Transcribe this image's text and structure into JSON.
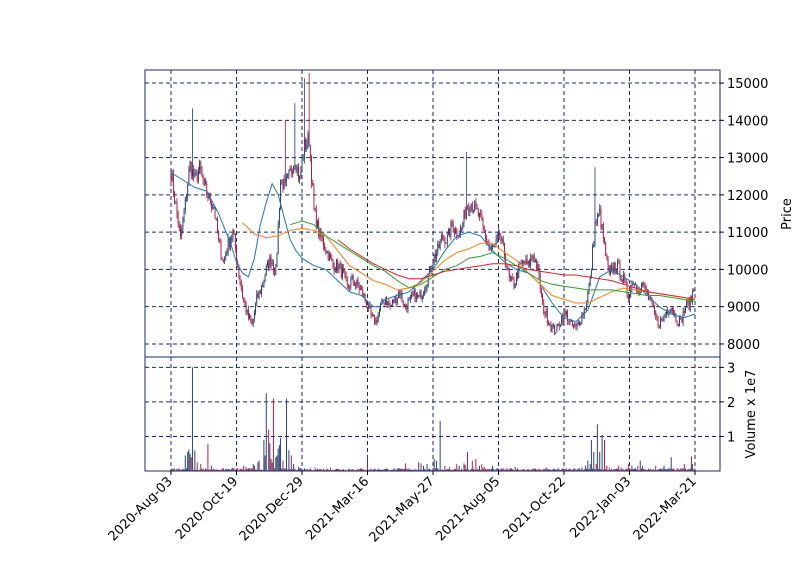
{
  "chart_data": {
    "type": "candlestick",
    "grid": true,
    "grid_style": "dashed",
    "colors": {
      "up": "#1f3b70",
      "down": "#a8163e",
      "frame": "#1b2a6b",
      "grid": "#1b2a6b",
      "ma_short": "#1f77b4",
      "ma_mid": "#ff7f0e",
      "ma_long": "#2ca02c",
      "ma_longest": "#d62728"
    },
    "x_ticks": [
      "2020-Aug-03",
      "2020-Oct-19",
      "2020-Dec-29",
      "2021-Mar-16",
      "2021-May-27",
      "2021-Aug-05",
      "2021-Oct-22",
      "2022-Jan-03",
      "2022-Mar-21"
    ],
    "price_panel": {
      "ylabel": "Price",
      "ylim": [
        7650,
        15350
      ],
      "y_ticks": [
        8000,
        9000,
        10000,
        11000,
        12000,
        13000,
        14000,
        15000
      ]
    },
    "volume_panel": {
      "ylabel": "Volume x 1e7",
      "ylim": [
        0,
        3.3
      ],
      "y_ticks": [
        1,
        2,
        3
      ]
    },
    "price_anchors": [
      [
        0,
        12600
      ],
      [
        4,
        11700
      ],
      [
        8,
        10800
      ],
      [
        12,
        11800
      ],
      [
        16,
        12800
      ],
      [
        20,
        12400
      ],
      [
        24,
        12700
      ],
      [
        28,
        12200
      ],
      [
        32,
        11900
      ],
      [
        36,
        11700
      ],
      [
        40,
        10700
      ],
      [
        44,
        10200
      ],
      [
        48,
        10700
      ],
      [
        52,
        11000
      ],
      [
        56,
        10100
      ],
      [
        60,
        9300
      ],
      [
        64,
        8800
      ],
      [
        68,
        8500
      ],
      [
        72,
        9200
      ],
      [
        76,
        9500
      ],
      [
        80,
        10000
      ],
      [
        84,
        10300
      ],
      [
        88,
        9900
      ],
      [
        92,
        12400
      ],
      [
        96,
        12200
      ],
      [
        100,
        12600
      ],
      [
        104,
        13000
      ],
      [
        108,
        12400
      ],
      [
        112,
        13300
      ],
      [
        116,
        13500
      ],
      [
        120,
        11600
      ],
      [
        124,
        11000
      ],
      [
        128,
        10700
      ],
      [
        132,
        10400
      ],
      [
        136,
        10100
      ],
      [
        140,
        10100
      ],
      [
        144,
        9900
      ],
      [
        148,
        9500
      ],
      [
        152,
        9700
      ],
      [
        156,
        9600
      ],
      [
        160,
        9400
      ],
      [
        164,
        9100
      ],
      [
        168,
        8700
      ],
      [
        172,
        8600
      ],
      [
        176,
        9000
      ],
      [
        180,
        9200
      ],
      [
        184,
        9000
      ],
      [
        188,
        9200
      ],
      [
        192,
        9400
      ],
      [
        196,
        9000
      ],
      [
        200,
        9100
      ],
      [
        204,
        9300
      ],
      [
        208,
        9200
      ],
      [
        212,
        9500
      ],
      [
        216,
        9800
      ],
      [
        220,
        10300
      ],
      [
        224,
        10500
      ],
      [
        228,
        10900
      ],
      [
        232,
        10800
      ],
      [
        236,
        11200
      ],
      [
        240,
        11000
      ],
      [
        244,
        11100
      ],
      [
        248,
        11700
      ],
      [
        252,
        11800
      ],
      [
        256,
        11600
      ],
      [
        260,
        11300
      ],
      [
        264,
        10900
      ],
      [
        268,
        10500
      ],
      [
        272,
        10600
      ],
      [
        276,
        10900
      ],
      [
        280,
        10400
      ],
      [
        284,
        9700
      ],
      [
        288,
        9600
      ],
      [
        292,
        10000
      ],
      [
        296,
        10200
      ],
      [
        300,
        10100
      ],
      [
        304,
        10400
      ],
      [
        308,
        10000
      ],
      [
        312,
        9000
      ],
      [
        316,
        8700
      ],
      [
        320,
        8400
      ],
      [
        324,
        8400
      ],
      [
        328,
        8700
      ],
      [
        332,
        8800
      ],
      [
        336,
        8500
      ],
      [
        340,
        8400
      ],
      [
        344,
        8700
      ],
      [
        348,
        9000
      ],
      [
        352,
        9700
      ],
      [
        356,
        11200
      ],
      [
        360,
        11500
      ],
      [
        364,
        10600
      ],
      [
        368,
        9800
      ],
      [
        372,
        10100
      ],
      [
        376,
        10000
      ],
      [
        380,
        9700
      ],
      [
        384,
        9300
      ],
      [
        388,
        9700
      ],
      [
        392,
        9500
      ],
      [
        396,
        9600
      ],
      [
        400,
        9300
      ],
      [
        404,
        9000
      ],
      [
        408,
        8600
      ],
      [
        412,
        8600
      ],
      [
        416,
        8900
      ],
      [
        420,
        9000
      ],
      [
        424,
        8700
      ],
      [
        428,
        8600
      ],
      [
        432,
        9000
      ],
      [
        436,
        9100
      ],
      [
        440,
        9600
      ]
    ],
    "ma_short_points": [
      [
        0,
        12600
      ],
      [
        10,
        12400
      ],
      [
        20,
        12200
      ],
      [
        30,
        12100
      ],
      [
        40,
        11500
      ],
      [
        50,
        10700
      ],
      [
        55,
        10200
      ],
      [
        60,
        9900
      ],
      [
        65,
        9800
      ],
      [
        70,
        10300
      ],
      [
        75,
        11200
      ],
      [
        80,
        11800
      ],
      [
        85,
        12300
      ],
      [
        90,
        12000
      ],
      [
        95,
        11400
      ],
      [
        100,
        10800
      ],
      [
        105,
        10500
      ],
      [
        110,
        10300
      ],
      [
        120,
        10100
      ],
      [
        130,
        10000
      ],
      [
        140,
        9700
      ],
      [
        150,
        9400
      ],
      [
        160,
        9300
      ],
      [
        165,
        9150
      ],
      [
        170,
        9000
      ],
      [
        175,
        9000
      ],
      [
        180,
        9200
      ],
      [
        190,
        9300
      ],
      [
        200,
        9400
      ],
      [
        210,
        9700
      ],
      [
        220,
        10000
      ],
      [
        230,
        10500
      ],
      [
        240,
        10900
      ],
      [
        250,
        11000
      ],
      [
        260,
        10900
      ],
      [
        270,
        10500
      ],
      [
        280,
        10200
      ],
      [
        290,
        10000
      ],
      [
        300,
        9900
      ],
      [
        310,
        9600
      ],
      [
        320,
        9100
      ],
      [
        330,
        8700
      ],
      [
        340,
        8600
      ],
      [
        350,
        8900
      ],
      [
        360,
        9800
      ],
      [
        370,
        10000
      ],
      [
        380,
        9800
      ],
      [
        390,
        9600
      ],
      [
        400,
        9300
      ],
      [
        410,
        9000
      ],
      [
        420,
        8800
      ],
      [
        430,
        8700
      ],
      [
        440,
        8800
      ]
    ],
    "ma_mid_points": [
      [
        60,
        11250
      ],
      [
        70,
        10950
      ],
      [
        80,
        10850
      ],
      [
        90,
        10900
      ],
      [
        100,
        11050
      ],
      [
        110,
        11100
      ],
      [
        120,
        11050
      ],
      [
        130,
        10900
      ],
      [
        140,
        10500
      ],
      [
        150,
        10100
      ],
      [
        160,
        9900
      ],
      [
        170,
        9700
      ],
      [
        180,
        9600
      ],
      [
        190,
        9450
      ],
      [
        200,
        9500
      ],
      [
        210,
        9650
      ],
      [
        220,
        9950
      ],
      [
        230,
        10250
      ],
      [
        240,
        10450
      ],
      [
        250,
        10550
      ],
      [
        260,
        10700
      ],
      [
        270,
        10700
      ],
      [
        280,
        10450
      ],
      [
        290,
        10250
      ],
      [
        300,
        9900
      ],
      [
        310,
        9600
      ],
      [
        320,
        9300
      ],
      [
        330,
        9200
      ],
      [
        340,
        9100
      ],
      [
        350,
        9100
      ],
      [
        360,
        9250
      ],
      [
        370,
        9400
      ],
      [
        380,
        9500
      ],
      [
        390,
        9450
      ],
      [
        400,
        9400
      ],
      [
        410,
        9350
      ],
      [
        420,
        9300
      ],
      [
        430,
        9250
      ],
      [
        440,
        9200
      ]
    ],
    "ma_long_points": [
      [
        100,
        11200
      ],
      [
        110,
        11300
      ],
      [
        120,
        11200
      ],
      [
        130,
        10900
      ],
      [
        140,
        10700
      ],
      [
        150,
        10500
      ],
      [
        160,
        10300
      ],
      [
        170,
        10100
      ],
      [
        180,
        9950
      ],
      [
        190,
        9700
      ],
      [
        200,
        9500
      ],
      [
        210,
        9600
      ],
      [
        220,
        9800
      ],
      [
        230,
        10000
      ],
      [
        240,
        10100
      ],
      [
        250,
        10300
      ],
      [
        260,
        10350
      ],
      [
        270,
        10450
      ],
      [
        280,
        10300
      ],
      [
        290,
        10100
      ],
      [
        300,
        9900
      ],
      [
        310,
        9700
      ],
      [
        320,
        9600
      ],
      [
        330,
        9550
      ],
      [
        340,
        9500
      ],
      [
        350,
        9450
      ],
      [
        360,
        9450
      ],
      [
        370,
        9450
      ],
      [
        380,
        9400
      ],
      [
        390,
        9350
      ],
      [
        400,
        9300
      ],
      [
        410,
        9300
      ],
      [
        420,
        9250
      ],
      [
        430,
        9200
      ],
      [
        440,
        9150
      ]
    ],
    "ma_longest_points": [
      [
        140,
        10800
      ],
      [
        150,
        10550
      ],
      [
        160,
        10350
      ],
      [
        170,
        10150
      ],
      [
        180,
        10000
      ],
      [
        190,
        9850
      ],
      [
        200,
        9750
      ],
      [
        210,
        9750
      ],
      [
        220,
        9850
      ],
      [
        230,
        9950
      ],
      [
        240,
        10000
      ],
      [
        250,
        10050
      ],
      [
        260,
        10100
      ],
      [
        270,
        10150
      ],
      [
        280,
        10150
      ],
      [
        290,
        10100
      ],
      [
        300,
        10000
      ],
      [
        310,
        9950
      ],
      [
        320,
        9900
      ],
      [
        330,
        9850
      ],
      [
        340,
        9850
      ],
      [
        350,
        9800
      ],
      [
        360,
        9750
      ],
      [
        370,
        9700
      ],
      [
        380,
        9600
      ],
      [
        390,
        9500
      ],
      [
        400,
        9400
      ],
      [
        410,
        9350
      ],
      [
        420,
        9300
      ],
      [
        430,
        9250
      ],
      [
        440,
        9200
      ]
    ],
    "volume_spikes": [
      [
        12,
        0.45
      ],
      [
        14,
        0.55
      ],
      [
        15,
        0.62
      ],
      [
        16,
        0.5
      ],
      [
        17,
        0.4
      ],
      [
        18,
        3.0
      ],
      [
        20,
        0.6
      ],
      [
        22,
        0.25
      ],
      [
        25,
        0.2
      ],
      [
        31,
        0.78
      ],
      [
        34,
        0.15
      ],
      [
        52,
        0.1
      ],
      [
        61,
        0.15
      ],
      [
        63,
        0.12
      ],
      [
        69,
        0.2
      ],
      [
        70,
        0.15
      ],
      [
        73,
        0.25
      ],
      [
        74,
        0.3
      ],
      [
        78,
        0.9
      ],
      [
        79,
        0.45
      ],
      [
        80,
        2.25
      ],
      [
        82,
        1.2
      ],
      [
        83,
        0.8
      ],
      [
        84,
        0.35
      ],
      [
        85,
        0.25
      ],
      [
        86,
        2.1
      ],
      [
        88,
        0.4
      ],
      [
        89,
        0.45
      ],
      [
        90,
        0.65
      ],
      [
        91,
        0.75
      ],
      [
        92,
        0.95
      ],
      [
        94,
        0.3
      ],
      [
        97,
        2.1
      ],
      [
        99,
        0.6
      ],
      [
        101,
        0.45
      ],
      [
        103,
        0.2
      ],
      [
        107,
        0.12
      ],
      [
        121,
        0.1
      ],
      [
        134,
        0.1
      ],
      [
        165,
        0.4
      ],
      [
        197,
        0.22
      ],
      [
        208,
        0.25
      ],
      [
        210,
        0.22
      ],
      [
        212,
        0.15
      ],
      [
        215,
        0.2
      ],
      [
        221,
        0.35
      ],
      [
        223,
        0.3
      ],
      [
        226,
        1.45
      ],
      [
        230,
        0.15
      ],
      [
        234,
        0.12
      ],
      [
        240,
        0.2
      ],
      [
        242,
        0.15
      ],
      [
        246,
        0.22
      ],
      [
        247,
        0.18
      ],
      [
        249,
        0.55
      ],
      [
        253,
        0.3
      ],
      [
        256,
        0.35
      ],
      [
        259,
        0.15
      ],
      [
        261,
        0.2
      ],
      [
        263,
        0.12
      ],
      [
        270,
        0.15
      ],
      [
        289,
        0.12
      ],
      [
        315,
        0.1
      ],
      [
        345,
        0.1
      ],
      [
        348,
        0.15
      ],
      [
        350,
        0.3
      ],
      [
        352,
        0.2
      ],
      [
        353,
        0.9
      ],
      [
        355,
        0.55
      ],
      [
        357,
        0.2
      ],
      [
        358,
        1.35
      ],
      [
        360,
        0.55
      ],
      [
        362,
        1.05
      ],
      [
        364,
        0.9
      ],
      [
        366,
        0.15
      ],
      [
        368,
        0.1
      ],
      [
        376,
        0.15
      ],
      [
        378,
        0.1
      ],
      [
        384,
        0.2
      ],
      [
        387,
        0.15
      ],
      [
        392,
        0.15
      ],
      [
        394,
        0.3
      ],
      [
        396,
        0.15
      ],
      [
        407,
        0.15
      ],
      [
        414,
        0.15
      ],
      [
        420,
        0.4
      ],
      [
        431,
        0.2
      ],
      [
        437,
        0.42
      ],
      [
        438,
        0.2
      ]
    ]
  }
}
